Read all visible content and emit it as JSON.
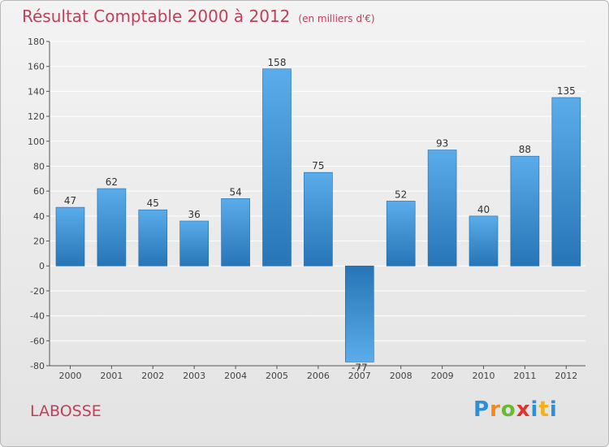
{
  "header": {
    "title": "Résultat Comptable 2000 à 2012",
    "subtitle": "(en milliers d'€)"
  },
  "footer": {
    "commune": "LABOSSE",
    "logo": "Proxiti"
  },
  "colors": {
    "title": "#c0405a",
    "bar_top": "#5aacea",
    "bar_bottom": "#2775b6",
    "axis": "#555555",
    "grid": "#ffffff"
  },
  "chart_data": {
    "type": "bar",
    "categories": [
      "2000",
      "2001",
      "2002",
      "2003",
      "2004",
      "2005",
      "2006",
      "2007",
      "2008",
      "2009",
      "2010",
      "2011",
      "2012"
    ],
    "values": [
      47,
      62,
      45,
      36,
      54,
      158,
      75,
      -77,
      52,
      93,
      40,
      88,
      135
    ],
    "data_labels": [
      "47",
      "62",
      "45",
      "36",
      "54",
      "158",
      "75",
      "-77",
      "52",
      "93",
      "40",
      "88",
      "135"
    ],
    "y_ticks": [
      180,
      160,
      140,
      120,
      100,
      80,
      60,
      40,
      20,
      0,
      -20,
      -40,
      -60,
      -80
    ],
    "ylim": [
      -80,
      180
    ],
    "grid": true,
    "legend": "none"
  }
}
